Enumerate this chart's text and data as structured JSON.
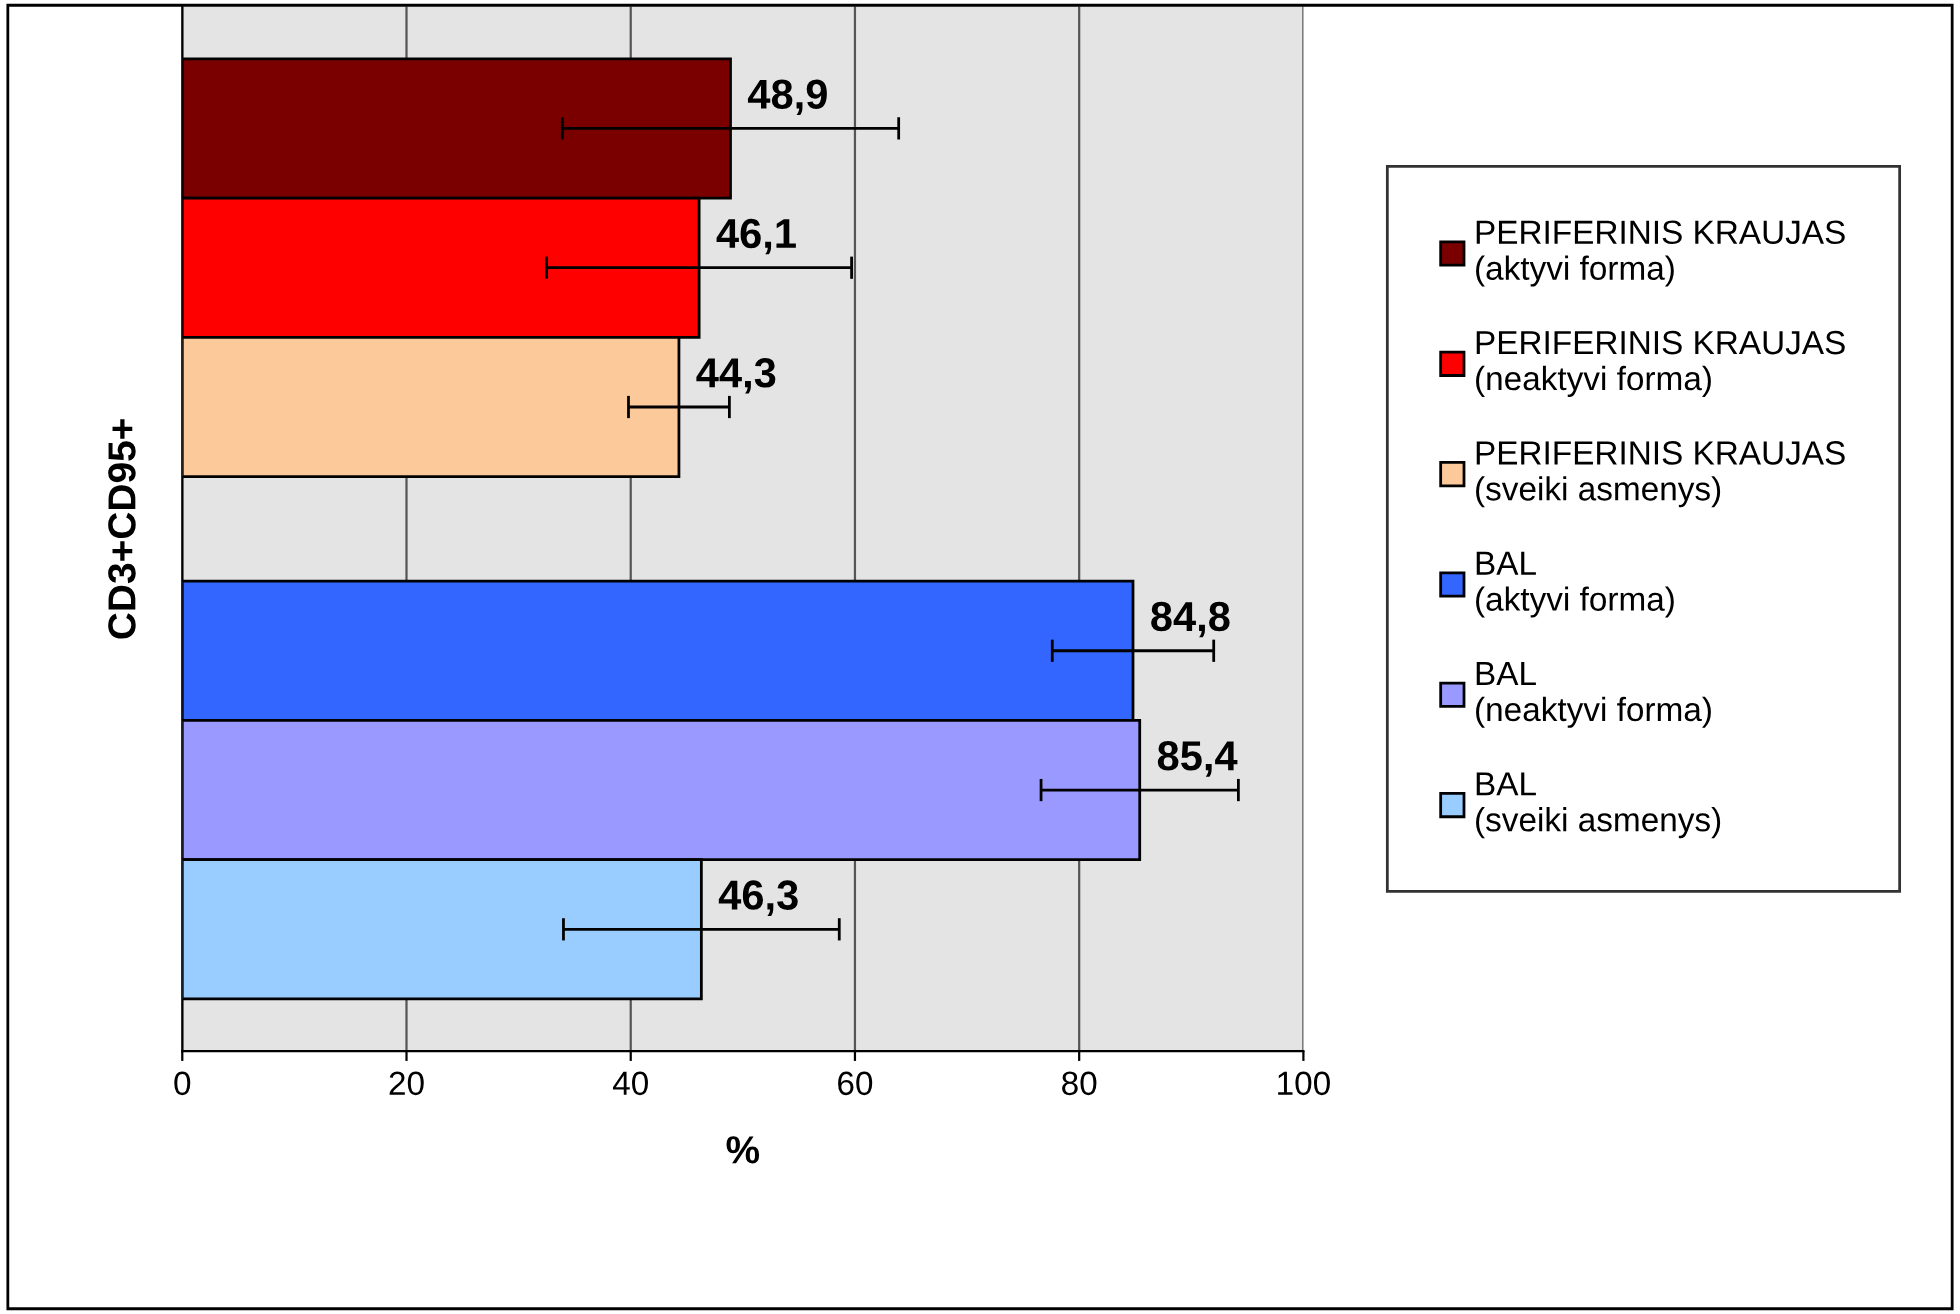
{
  "chart_data": {
    "type": "bar",
    "orientation": "horizontal",
    "ylabel": "CD3+CD95+",
    "xlabel": "%",
    "categories": [
      null,
      null
    ],
    "series": [
      {
        "name": "PERIFERINIS KRAUJAS (aktyvi forma)",
        "color": "#7a0000",
        "values": [
          48.9,
          null
        ],
        "errors": [
          15.0,
          null
        ],
        "value_labels": [
          "48,9",
          null
        ]
      },
      {
        "name": "PERIFERINIS KRAUJAS (neaktyvi forma)",
        "color": "#ff0000",
        "values": [
          46.1,
          null
        ],
        "errors": [
          13.6,
          null
        ],
        "value_labels": [
          "46,1",
          null
        ]
      },
      {
        "name": "PERIFERINIS KRAUJAS (sveiki asmenys)",
        "color": "#fcc99a",
        "values": [
          44.3,
          null
        ],
        "errors": [
          4.5,
          null
        ],
        "value_labels": [
          "44,3",
          null
        ]
      },
      {
        "name": "BAL (aktyvi forma)",
        "color": "#3366ff",
        "values": [
          null,
          84.8
        ],
        "errors": [
          null,
          7.2
        ],
        "value_labels": [
          null,
          "84,8"
        ]
      },
      {
        "name": "BAL (neaktyvi forma)",
        "color": "#9999ff",
        "values": [
          null,
          85.4
        ],
        "errors": [
          null,
          8.8
        ],
        "value_labels": [
          null,
          "85,4"
        ]
      },
      {
        "name": "BAL (sveiki asmenys)",
        "color": "#99ccff",
        "values": [
          null,
          46.3
        ],
        "errors": [
          null,
          12.3
        ],
        "value_labels": [
          null,
          "46,3"
        ]
      }
    ],
    "xlim": [
      0,
      100
    ],
    "xticks": [
      0,
      20,
      40,
      60,
      80,
      100
    ],
    "grid": "x",
    "legend": "right"
  }
}
